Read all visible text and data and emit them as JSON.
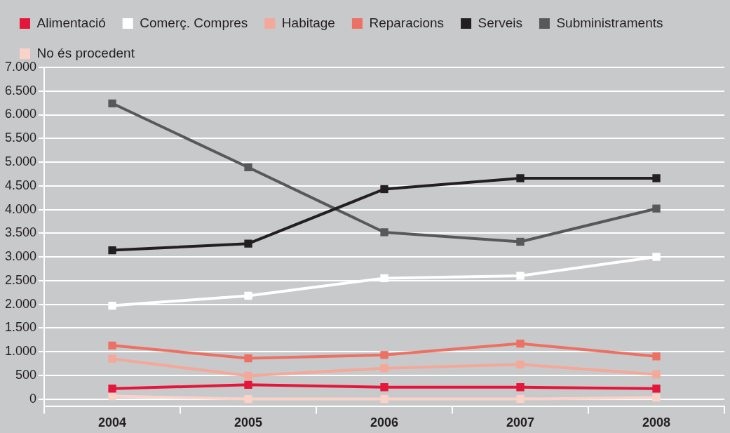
{
  "chart_data": {
    "type": "line",
    "categories": [
      "2004",
      "2005",
      "2006",
      "2007",
      "2008"
    ],
    "series": [
      {
        "name": "Alimentació",
        "color": "#e4173a",
        "values": [
          220,
          300,
          250,
          250,
          220
        ]
      },
      {
        "name": "Comerç. Compres",
        "color": "#ffffff",
        "values": [
          1970,
          2180,
          2550,
          2600,
          3000
        ]
      },
      {
        "name": "Habitage",
        "color": "#f4a899",
        "values": [
          850,
          490,
          650,
          730,
          520
        ]
      },
      {
        "name": "Reparacions",
        "color": "#ec7063",
        "values": [
          1130,
          860,
          930,
          1170,
          900
        ]
      },
      {
        "name": "Serveis",
        "color": "#231f20",
        "values": [
          3140,
          3280,
          4430,
          4660,
          4660
        ]
      },
      {
        "name": "Subministraments",
        "color": "#58585a",
        "values": [
          6240,
          4890,
          3520,
          3320,
          4020
        ]
      },
      {
        "name": "No és procedent",
        "color": "#fad2c8",
        "values": [
          60,
          0,
          0,
          0,
          30
        ]
      }
    ],
    "ylim": [
      -160,
      7000
    ],
    "yticks": [
      {
        "value": 0,
        "label": "0"
      },
      {
        "value": 500,
        "label": "500"
      },
      {
        "value": 1000,
        "label": "1.000"
      },
      {
        "value": 1500,
        "label": "1.500"
      },
      {
        "value": 2000,
        "label": "2.000"
      },
      {
        "value": 2500,
        "label": "2.500"
      },
      {
        "value": 3000,
        "label": "3.000"
      },
      {
        "value": 3500,
        "label": "3.500"
      },
      {
        "value": 4000,
        "label": "4.000"
      },
      {
        "value": 4500,
        "label": "4.500"
      },
      {
        "value": 5000,
        "label": "5.000"
      },
      {
        "value": 5500,
        "label": "5.500"
      },
      {
        "value": 6000,
        "label": "6.000"
      },
      {
        "value": 6500,
        "label": "6.500"
      },
      {
        "value": 7000,
        "label": "7.000"
      }
    ],
    "grid": "y",
    "legend": "top left",
    "marker": "square",
    "line_style": "solid"
  }
}
